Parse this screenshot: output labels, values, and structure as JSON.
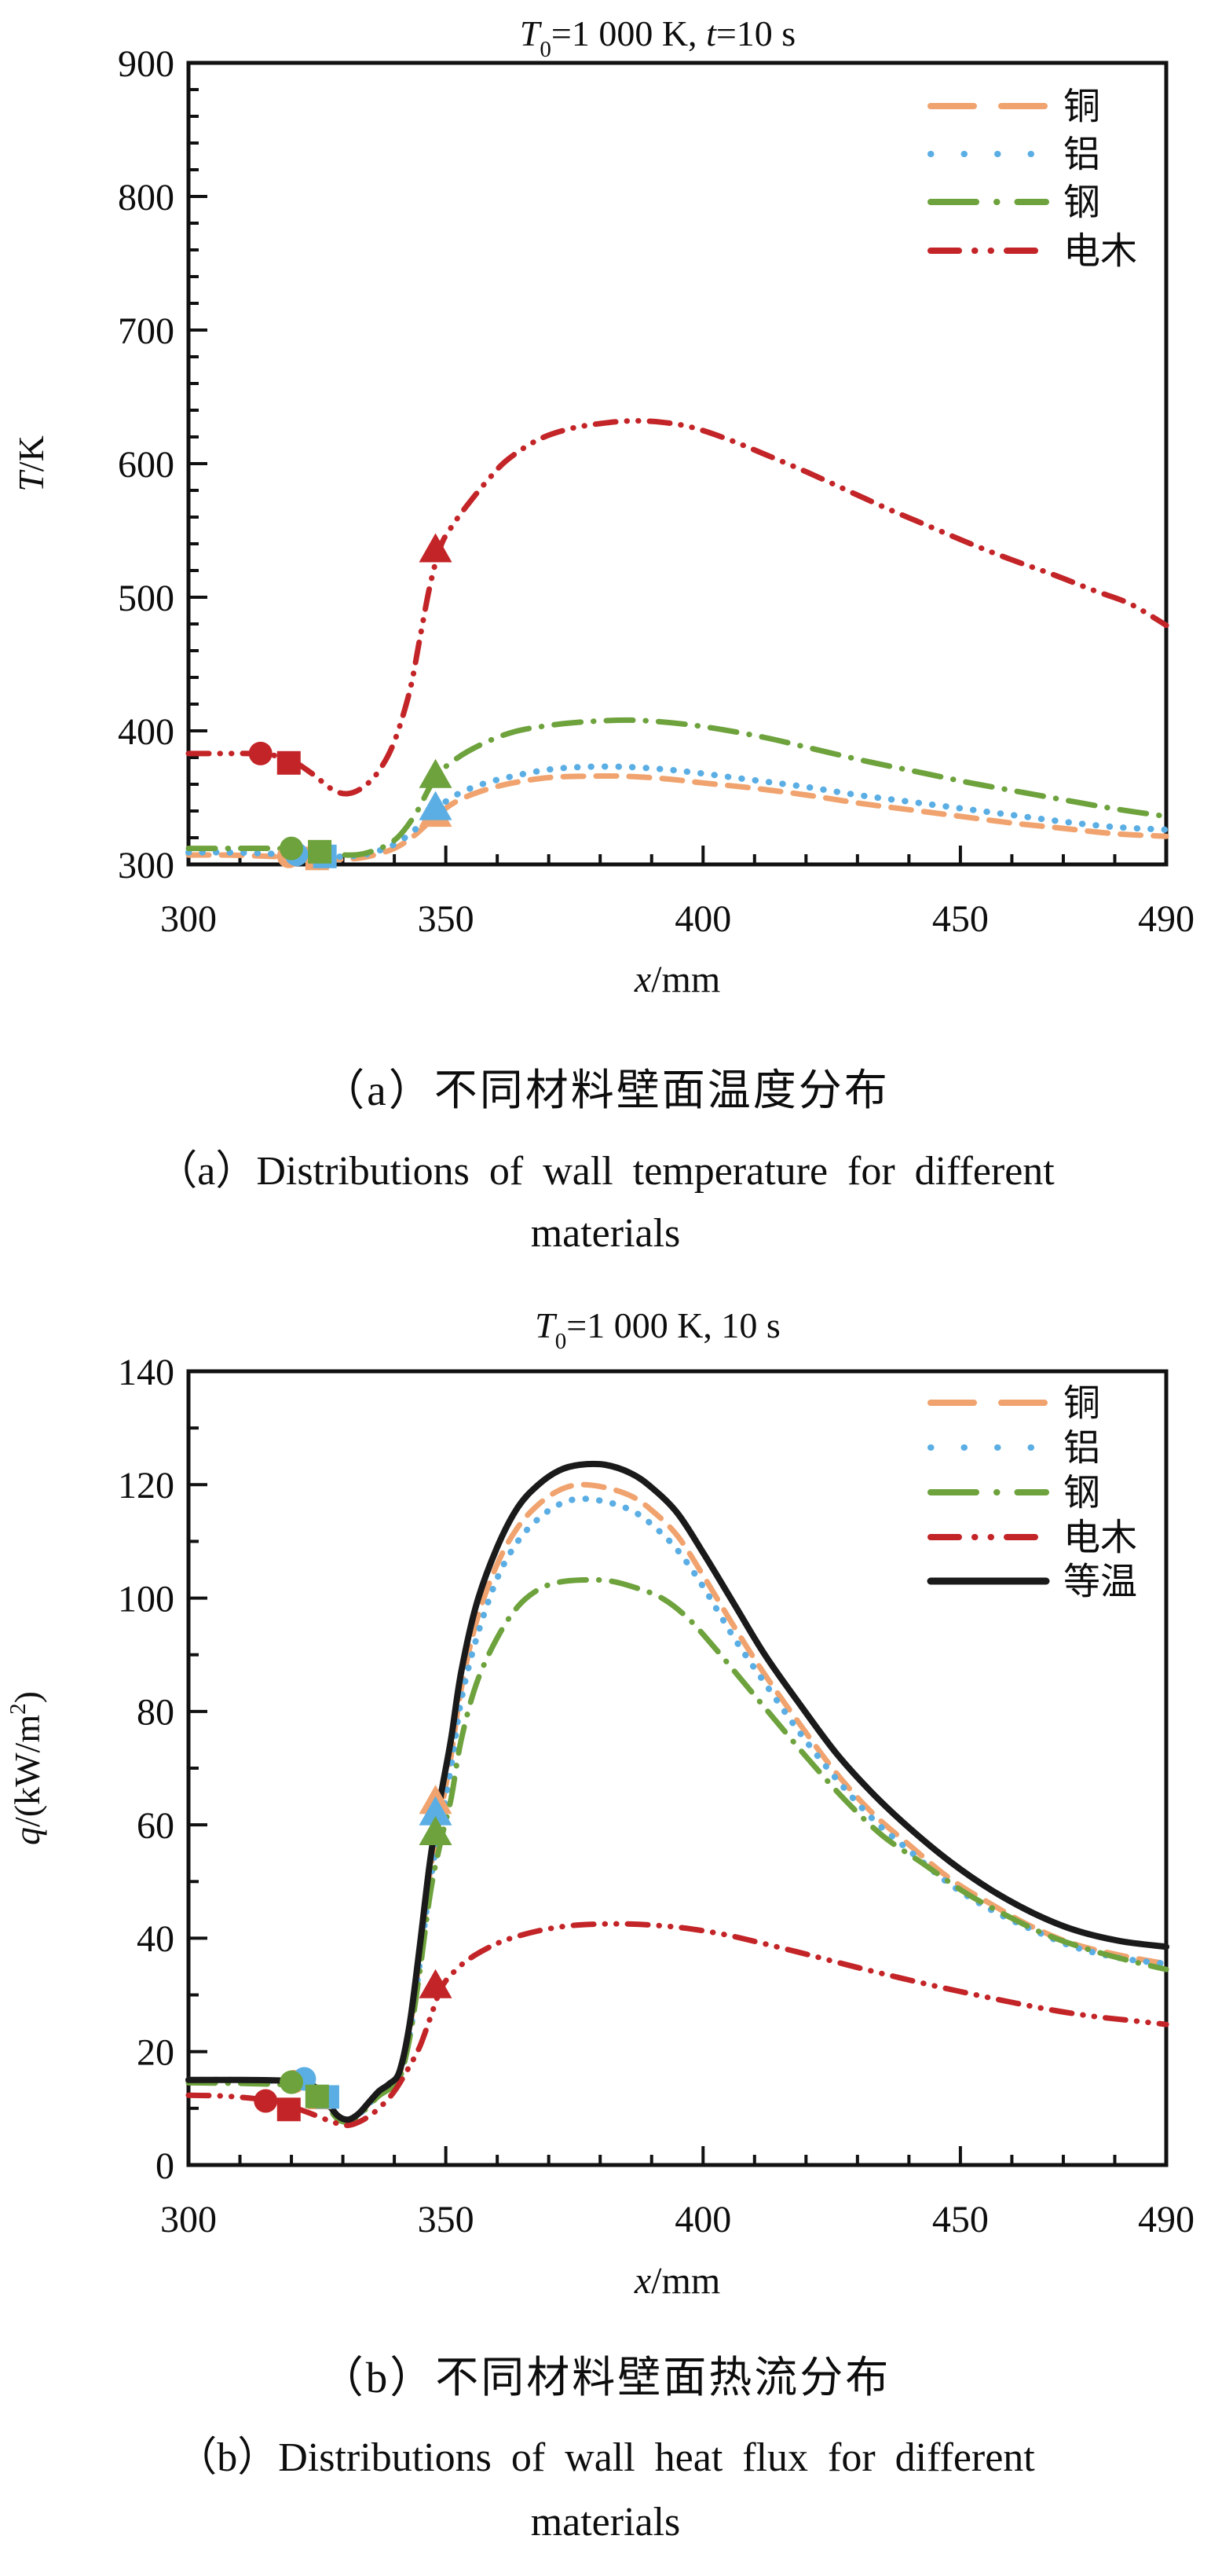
{
  "captions": {
    "a_zh": "（a）不同材料壁面温度分布",
    "a_en_line1": "（a）Distributions of wall temperature for different",
    "a_en_line2": "materials",
    "b_zh": "（b）不同材料壁面热流分布",
    "b_en_line1": "（b）Distributions of wall heat flux for different",
    "b_en_line2": "materials"
  },
  "colors": {
    "copper": "#F0A36E",
    "aluminum": "#5BAEE4",
    "steel": "#6DA23C",
    "bakelite": "#C32427",
    "isothermal": "#1A1A1A",
    "axis": "#111111"
  },
  "chart_data": [
    {
      "type": "line",
      "title_parts": [
        {
          "text": "T",
          "style": "italic"
        },
        {
          "text": "0",
          "style": "sub"
        },
        {
          "text": "=1 000 K, ",
          "style": ""
        },
        {
          "text": "t",
          "style": "italic"
        },
        {
          "text": "=10 s",
          "style": ""
        }
      ],
      "xlabel_parts": [
        {
          "text": "x",
          "style": "italic"
        },
        {
          "text": "/mm",
          "style": ""
        }
      ],
      "ylabel_parts": [
        {
          "text": "T",
          "style": "italic"
        },
        {
          "text": "/K",
          "style": ""
        }
      ],
      "x_axis": {
        "min": 300,
        "max": 490,
        "major_ticks": [
          300,
          350,
          400,
          450,
          490
        ],
        "minor_step": 10
      },
      "y_axis": {
        "min": 300,
        "max": 900,
        "major_ticks": [
          300,
          400,
          500,
          600,
          700,
          800,
          900
        ],
        "minor_step": 20
      },
      "legend_position": "top-right",
      "series": [
        {
          "name": "铜",
          "color": "#F0A36E",
          "width": 7,
          "dash": "26 16",
          "legend_dash": "55 35",
          "x": [
            300,
            308,
            316,
            322,
            327,
            331,
            335,
            340,
            344,
            348,
            352,
            357,
            363,
            370,
            377,
            385,
            393,
            400,
            410,
            420,
            430,
            440,
            450,
            460,
            470,
            480,
            490
          ],
          "y": [
            307,
            307,
            306,
            305,
            304,
            304,
            306,
            312,
            322,
            336,
            347,
            355,
            361,
            365,
            366,
            366,
            364,
            361,
            357,
            352,
            346,
            341,
            336,
            331,
            327,
            323,
            321
          ],
          "markers": {
            "circle": [
              319.5,
              306
            ],
            "square": [
              325,
              304.5
            ],
            "triangle": [
              348,
              337
            ]
          }
        },
        {
          "name": "铝",
          "color": "#5BAEE4",
          "width": 8,
          "dash": "0.5 17",
          "legend_dash": "0.5 42",
          "x": [
            300,
            308,
            316,
            322,
            327,
            331,
            335,
            340,
            344,
            348,
            352,
            357,
            363,
            370,
            377,
            385,
            393,
            400,
            410,
            420,
            430,
            440,
            450,
            460,
            470,
            480,
            490
          ],
          "y": [
            309,
            309,
            308,
            307,
            306,
            306,
            308,
            315,
            326,
            341,
            352,
            360,
            366,
            371,
            373,
            373,
            371,
            368,
            363,
            358,
            352,
            347,
            342,
            337,
            332,
            328,
            326
          ],
          "markers": {
            "circle": [
              321,
              307.5
            ],
            "square": [
              326.5,
              306
            ],
            "triangle": [
              348,
              342
            ]
          }
        },
        {
          "name": "钢",
          "color": "#6DA23C",
          "width": 7,
          "dash": "34 16 0.5 16",
          "legend_dash": "58 26 0.5 26",
          "x": [
            300,
            308,
            316,
            322,
            327,
            331,
            335,
            340,
            344,
            348,
            352,
            357,
            363,
            370,
            378,
            386,
            394,
            402,
            412,
            422,
            432,
            442,
            452,
            462,
            472,
            481,
            490
          ],
          "y": [
            312,
            312,
            312,
            311,
            309,
            307,
            309,
            318,
            337,
            365,
            379,
            390,
            399,
            404,
            407,
            408,
            406,
            402,
            395,
            386,
            377,
            369,
            361,
            354,
            347,
            341,
            336
          ],
          "markers": {
            "circle": [
              320,
              312
            ],
            "square": [
              325.5,
              309.5
            ],
            "triangle": [
              348,
              366
            ]
          }
        },
        {
          "name": "电木",
          "color": "#C32427",
          "width": 7,
          "dash": "26 14 0.5 14 0.5 14",
          "legend_dash": "36 20 0.5 20 0.5 20",
          "x": [
            300,
            306,
            312,
            316,
            320,
            324,
            328,
            331,
            334,
            337,
            340,
            343,
            345,
            347,
            349,
            351,
            354,
            358,
            362,
            368,
            374,
            380,
            386,
            392,
            398,
            405,
            412,
            420,
            428,
            436,
            444,
            452,
            460,
            468,
            476,
            483,
            490
          ],
          "y": [
            383,
            383,
            383,
            382,
            378,
            368,
            356,
            353,
            358,
            370,
            392,
            430,
            470,
            510,
            538,
            552,
            568,
            587,
            603,
            618,
            626,
            630,
            632,
            631,
            627,
            618,
            607,
            594,
            580,
            566,
            553,
            540,
            528,
            517,
            505,
            495,
            479
          ],
          "markers": {
            "circle": [
              314,
              383
            ],
            "square": [
              319.5,
              376
            ],
            "triangle": [
              348,
              535
            ]
          }
        }
      ]
    },
    {
      "type": "line",
      "title_parts": [
        {
          "text": "T",
          "style": "italic"
        },
        {
          "text": "0",
          "style": "sub"
        },
        {
          "text": "=1 000 K, 10 s",
          "style": ""
        }
      ],
      "xlabel_parts": [
        {
          "text": "x",
          "style": "italic"
        },
        {
          "text": "/mm",
          "style": ""
        }
      ],
      "ylabel_parts": [
        {
          "text": "q",
          "style": "italic"
        },
        {
          "text": "/(kW/m",
          "style": ""
        },
        {
          "text": "2",
          "style": "sup"
        },
        {
          "text": ")",
          "style": ""
        }
      ],
      "x_axis": {
        "min": 300,
        "max": 490,
        "major_ticks": [
          300,
          350,
          400,
          450,
          490
        ],
        "minor_step": 10
      },
      "y_axis": {
        "min": 0,
        "max": 140,
        "major_ticks": [
          0,
          20,
          40,
          60,
          80,
          100,
          120,
          140
        ],
        "minor_step": 10
      },
      "legend_position": "top-right",
      "series": [
        {
          "name": "铜",
          "color": "#F0A36E",
          "width": 7,
          "dash": "26 16",
          "legend_dash": "55 35",
          "x": [
            300,
            310,
            318,
            322,
            325,
            327,
            329,
            331,
            333,
            335,
            337,
            339,
            341,
            343,
            345,
            347,
            349,
            351,
            353,
            356,
            360,
            364,
            368,
            372,
            376,
            381,
            386,
            390,
            395,
            400,
            406,
            412,
            419,
            426,
            433,
            440,
            448,
            456,
            464,
            472,
            481,
            490
          ],
          "y": [
            15,
            15,
            14.8,
            14.6,
            13.4,
            10.8,
            8.5,
            7.9,
            8.9,
            10.8,
            12.8,
            14,
            16,
            24,
            37,
            52,
            62,
            72,
            84,
            96,
            106,
            112.5,
            116.5,
            119,
            120,
            119.5,
            118,
            115.5,
            111,
            104,
            95,
            86.5,
            77.5,
            69,
            62,
            56.5,
            50.5,
            46,
            42,
            39,
            37,
            35.5
          ],
          "markers": {
            "circle": [
              320.5,
              14.7
            ],
            "square": [
              325.5,
              11.9
            ],
            "triangle": [
              348,
              64
            ]
          }
        },
        {
          "name": "铝",
          "color": "#5BAEE4",
          "width": 8,
          "dash": "0.5 17",
          "legend_dash": "0.5 42",
          "x": [
            300,
            310,
            318,
            322,
            325,
            327,
            329,
            331,
            333,
            335,
            337,
            339,
            341,
            343,
            345,
            347,
            349,
            351,
            353,
            356,
            360,
            364,
            368,
            372,
            376,
            381,
            386,
            390,
            395,
            400,
            406,
            412,
            419,
            426,
            433,
            440,
            448,
            456,
            464,
            472,
            481,
            490
          ],
          "y": [
            15,
            15,
            14.8,
            14.5,
            13.3,
            10.7,
            8.4,
            7.8,
            8.8,
            10.7,
            12.6,
            13.8,
            15.5,
            23,
            36,
            50,
            60,
            70,
            82,
            93,
            103.5,
            110,
            114,
            116.5,
            117.5,
            117,
            115.5,
            113,
            108.5,
            102,
            93,
            85,
            76,
            68,
            61,
            55.5,
            49.5,
            45,
            41.5,
            38.5,
            36.5,
            35.5
          ],
          "markers": {
            "circle": [
              322.5,
              15.2
            ],
            "square": [
              327,
              12
            ],
            "triangle": [
              348,
              62
            ]
          }
        },
        {
          "name": "钢",
          "color": "#6DA23C",
          "width": 7,
          "dash": "34 16 0.5 16",
          "legend_dash": "58 26 0.5 26",
          "x": [
            300,
            310,
            318,
            322,
            325,
            327,
            329,
            331,
            333,
            335,
            337,
            339,
            341,
            343,
            345,
            347,
            349,
            351,
            353,
            356,
            360,
            364,
            368,
            372,
            377,
            382,
            387,
            392,
            397,
            402,
            408,
            414,
            421,
            428,
            435,
            443,
            451,
            459,
            467,
            475,
            483,
            490
          ],
          "y": [
            14.5,
            14.4,
            14.2,
            14,
            12.8,
            10.4,
            8.1,
            7.6,
            8.6,
            10.4,
            12.2,
            13.4,
            15.2,
            22.5,
            34.5,
            48,
            57,
            64.5,
            75,
            85,
            93,
            98.5,
            101.5,
            102.8,
            103.2,
            103,
            101.8,
            100,
            96.5,
            91.5,
            85,
            78.5,
            71,
            64,
            58,
            53,
            48,
            44,
            40.5,
            38,
            36,
            34.5
          ],
          "markers": {
            "circle": [
              320,
              14.6
            ],
            "square": [
              325,
              12.1
            ],
            "triangle": [
              348,
              58.5
            ]
          }
        },
        {
          "name": "电木",
          "color": "#C32427",
          "width": 7,
          "dash": "26 14 0.5 14 0.5 14",
          "legend_dash": "36 20 0.5 20 0.5 20",
          "x": [
            300,
            306,
            312,
            316,
            320,
            324,
            328,
            331,
            334,
            337,
            340,
            343,
            345,
            347,
            349,
            351,
            354,
            358,
            362,
            368,
            374,
            380,
            386,
            392,
            398,
            405,
            412,
            420,
            428,
            436,
            444,
            452,
            460,
            468,
            476,
            483,
            490
          ],
          "y": [
            12.3,
            12.2,
            11.8,
            11.3,
            10.3,
            9,
            7.6,
            7,
            8,
            10,
            13,
            17.5,
            21,
            26,
            31,
            33.5,
            36,
            38.2,
            39.8,
            41.3,
            42.2,
            42.5,
            42.5,
            42.2,
            41.6,
            40.5,
            39,
            37.2,
            35.3,
            33.5,
            31.8,
            30.2,
            28.7,
            27.3,
            26.2,
            25.5,
            24.8
          ],
          "markers": {
            "circle": [
              315,
              11.3
            ],
            "square": [
              319.5,
              9.8
            ],
            "triangle": [
              348,
              31.5
            ]
          }
        },
        {
          "name": "等温",
          "color": "#1A1A1A",
          "width": 8,
          "dash": "",
          "legend_dash": "",
          "x": [
            300,
            310,
            318,
            322,
            325,
            327,
            329,
            331,
            333,
            335,
            337,
            339,
            341,
            343,
            345,
            347,
            349,
            351,
            353,
            356,
            360,
            364,
            368,
            372,
            376,
            381,
            386,
            390,
            395,
            400,
            406,
            412,
            419,
            426,
            433,
            440,
            448,
            456,
            464,
            472,
            481,
            490
          ],
          "y": [
            15,
            15,
            14.9,
            14.7,
            13.5,
            11,
            8.7,
            8,
            9,
            11,
            13,
            14.3,
            16.5,
            25,
            39,
            54,
            65,
            75,
            87,
            99,
            109,
            116,
            120,
            122.5,
            123.5,
            123.5,
            122,
            119.5,
            115,
            108,
            99,
            90,
            81,
            72.5,
            65.5,
            59.5,
            53.5,
            48.5,
            44.5,
            41.5,
            39.5,
            38.5
          ],
          "markers": {}
        }
      ]
    }
  ]
}
